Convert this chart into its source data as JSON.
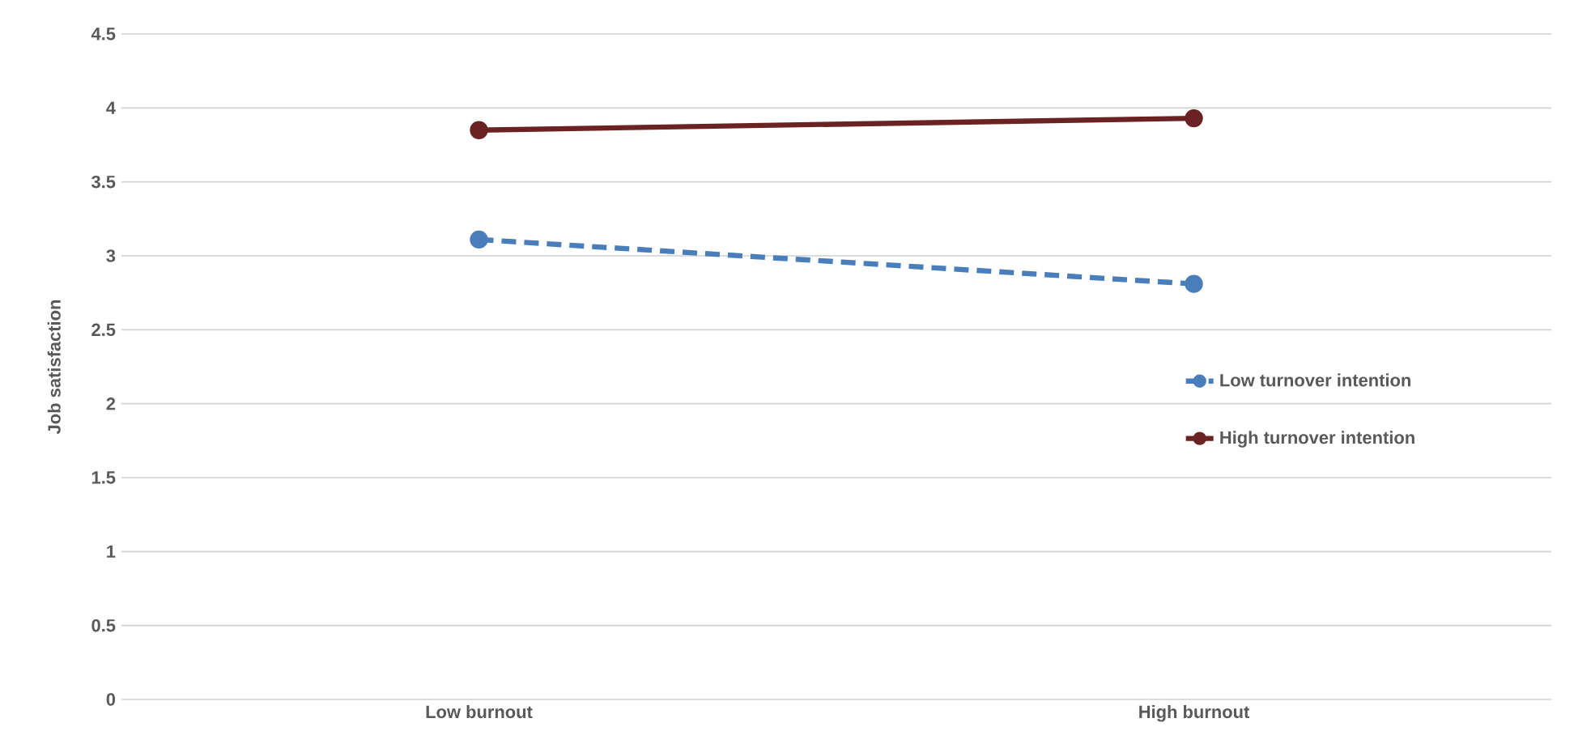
{
  "chart_data": {
    "type": "line",
    "ylabel": "Job satisfaction",
    "categories": [
      "Low burnout",
      "High burnout"
    ],
    "series": [
      {
        "name": "Low turnover intention",
        "color": "#4a7ebb",
        "values": [
          3.11,
          2.81
        ],
        "line_style": "dashed"
      },
      {
        "name": "High turnover intention",
        "color": "#6b2222",
        "values": [
          3.85,
          3.93
        ],
        "line_style": "solid"
      }
    ],
    "ylim": [
      0,
      4.5
    ],
    "yticks": [
      0,
      0.5,
      1,
      1.5,
      2,
      2.5,
      3,
      3.5,
      4,
      4.5
    ],
    "grid": "y",
    "legend": "right",
    "marker": "circle"
  }
}
